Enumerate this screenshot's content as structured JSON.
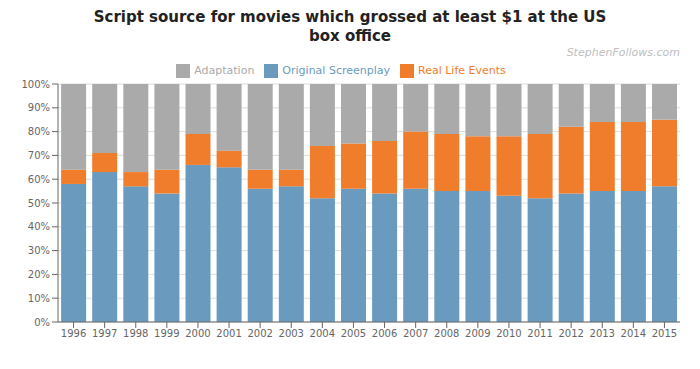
{
  "chart_data": {
    "type": "bar",
    "title": "Script source for movies which grossed at least $1 at the US\nbox office",
    "annotations": [
      "StephenFollows.com"
    ],
    "categories": [
      "1996",
      "1997",
      "1998",
      "1999",
      "2000",
      "2001",
      "2002",
      "2003",
      "2004",
      "2005",
      "2006",
      "2007",
      "2008",
      "2009",
      "2010",
      "2011",
      "2012",
      "2013",
      "2014",
      "2015"
    ],
    "series": [
      {
        "name": "Original Screenplay",
        "color": "#6a9bbf",
        "values": [
          58,
          63,
          57,
          54,
          66,
          65,
          56,
          57,
          52,
          56,
          54,
          56,
          55,
          55,
          53,
          52,
          54,
          55,
          55,
          57
        ]
      },
      {
        "name": "Real Life Events",
        "color": "#f07d2b",
        "values": [
          6,
          8,
          6,
          10,
          13,
          7,
          8,
          7,
          22,
          19,
          22,
          24,
          24,
          23,
          25,
          27,
          28,
          29,
          29,
          28
        ]
      },
      {
        "name": "Adaptation",
        "color": "#aaaaaa",
        "values": [
          36,
          29,
          37,
          36,
          21,
          28,
          36,
          36,
          26,
          25,
          24,
          20,
          21,
          22,
          22,
          21,
          18,
          16,
          16,
          15
        ]
      }
    ],
    "stacked": true,
    "ylim": [
      0,
      100
    ],
    "yticks": [
      {
        "value": 0,
        "label": "0%"
      },
      {
        "value": 10,
        "label": "10%"
      },
      {
        "value": 20,
        "label": "20%"
      },
      {
        "value": 30,
        "label": "30%"
      },
      {
        "value": 40,
        "label": "40%"
      },
      {
        "value": 50,
        "label": "50%"
      },
      {
        "value": 60,
        "label": "60%"
      },
      {
        "value": 70,
        "label": "70%"
      },
      {
        "value": 80,
        "label": "80%"
      },
      {
        "value": 90,
        "label": "90%"
      },
      {
        "value": 100,
        "label": "100%"
      }
    ],
    "grid": true,
    "legend": "top"
  }
}
